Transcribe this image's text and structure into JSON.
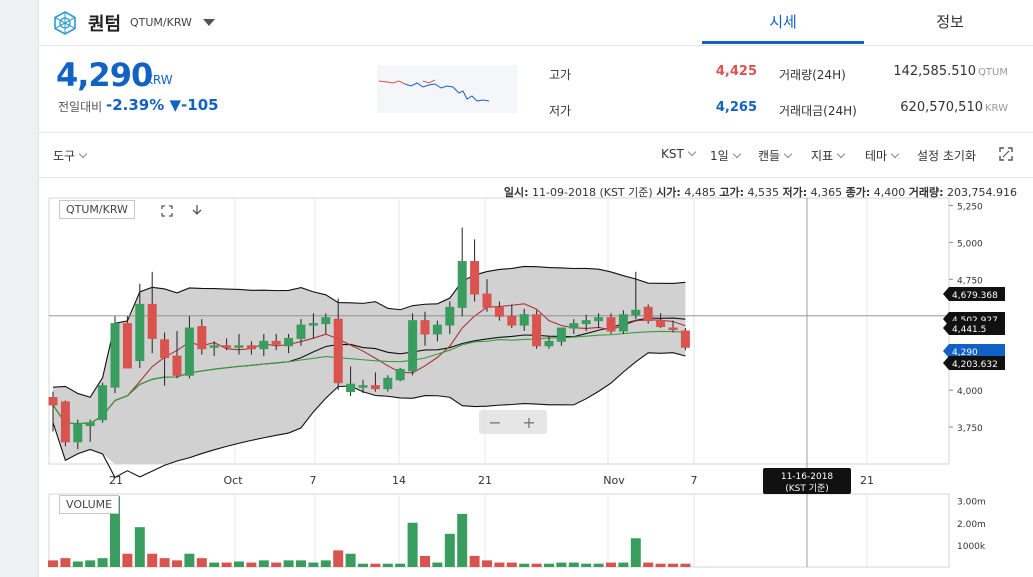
{
  "header": {
    "coin_name": "퀀텀",
    "pair": "QTUM/KRW",
    "tabs": [
      {
        "label": "시세"
      },
      {
        "label": "정보"
      }
    ]
  },
  "summary": {
    "price": "4,290",
    "price_unit": "KRW",
    "change_label": "전일대비",
    "change_pct": "-2.39%",
    "change_abs": "▼-105",
    "high_label": "고가",
    "high_value": "4,425",
    "low_label": "저가",
    "low_value": "4,265",
    "volume_label": "거래량(24H)",
    "volume_value": "142,585.510",
    "volume_unit": "QTUM",
    "amount_label": "거래대금(24H)",
    "amount_value": "620,570,510",
    "amount_unit": "KRW"
  },
  "toolbar": {
    "tools": "도구",
    "timezone": "KST",
    "interval": "1일",
    "candle": "캔들",
    "indicator": "지표",
    "theme": "테마",
    "reset": "설정 초기화"
  },
  "ohlc_bar": {
    "date_label": "일시:",
    "date_value": "11-09-2018 (KST 기준)",
    "open_label": "시가:",
    "open_value": "4,485",
    "high_label": "고가:",
    "high_value": "4,535",
    "low_label": "저가:",
    "low_value": "4,365",
    "close_label": "종가:",
    "close_value": "4,400",
    "volume_label": "거래량:",
    "volume_value": "203,754.916"
  },
  "chart_labels": {
    "main": "QTUM/KRW",
    "volume": "VOLUME",
    "crosshair_date": "11-16-2018",
    "crosshair_sub": "(KST 기준)"
  },
  "colors": {
    "up": "#3a9d60",
    "down": "#d9534f",
    "accent": "#1261c4",
    "band": "#cfcfcf"
  },
  "chart_data": {
    "type": "candlestick",
    "x_tick_labels": [
      "21",
      "Oct",
      "7",
      "14",
      "21",
      "Nov",
      "7",
      "21"
    ],
    "y_tick_labels": [
      "5,250",
      "5,000",
      "4,750",
      "4,500",
      "4,250",
      "4,000",
      "3,750"
    ],
    "ylim": [
      3500,
      5300
    ],
    "price_markers": [
      "4,679.368",
      "4,502.927",
      "4,441.5",
      "4,290",
      "4,203.632"
    ],
    "volume_tick_labels": [
      "3.00m",
      "2.00m",
      "1000k"
    ],
    "volume_ylim": [
      0,
      3300000
    ],
    "candles": [
      [
        3950,
        3990,
        3720,
        3900
      ],
      [
        3920,
        3930,
        3620,
        3650
      ],
      [
        3650,
        3800,
        3600,
        3770
      ],
      [
        3760,
        3800,
        3650,
        3780
      ],
      [
        3800,
        4050,
        3780,
        4030
      ],
      [
        4020,
        4500,
        3980,
        4450
      ],
      [
        4450,
        4500,
        4150,
        4150
      ],
      [
        4200,
        4720,
        4150,
        4580
      ],
      [
        4580,
        4800,
        4250,
        4350
      ],
      [
        4340,
        4390,
        4030,
        4220
      ],
      [
        4230,
        4400,
        4080,
        4100
      ],
      [
        4100,
        4500,
        4080,
        4420
      ],
      [
        4430,
        4480,
        4240,
        4280
      ],
      [
        4300,
        4330,
        4230,
        4300
      ],
      [
        4300,
        4350,
        4270,
        4290
      ],
      [
        4290,
        4380,
        4240,
        4300
      ],
      [
        4300,
        4330,
        4240,
        4280
      ],
      [
        4280,
        4380,
        4230,
        4330
      ],
      [
        4330,
        4380,
        4270,
        4310
      ],
      [
        4300,
        4380,
        4250,
        4350
      ],
      [
        4350,
        4480,
        4300,
        4440
      ],
      [
        4440,
        4520,
        4350,
        4450
      ],
      [
        4450,
        4520,
        4380,
        4490
      ],
      [
        4480,
        4620,
        4000,
        4050
      ],
      [
        3990,
        4160,
        3960,
        4040
      ],
      [
        4020,
        4070,
        3980,
        4030
      ],
      [
        4030,
        4120,
        3990,
        4010
      ],
      [
        4010,
        4100,
        3990,
        4080
      ],
      [
        4070,
        4150,
        4060,
        4140
      ],
      [
        4130,
        4520,
        4100,
        4470
      ],
      [
        4470,
        4530,
        4300,
        4380
      ],
      [
        4380,
        4470,
        4330,
        4440
      ],
      [
        4440,
        4600,
        4380,
        4560
      ],
      [
        4560,
        5100,
        4500,
        4870
      ],
      [
        4870,
        5020,
        4600,
        4650
      ],
      [
        4650,
        4750,
        4530,
        4560
      ],
      [
        4560,
        4600,
        4470,
        4500
      ],
      [
        4500,
        4580,
        4420,
        4440
      ],
      [
        4440,
        4550,
        4400,
        4510
      ],
      [
        4510,
        4540,
        4280,
        4300
      ],
      [
        4300,
        4360,
        4280,
        4330
      ],
      [
        4330,
        4420,
        4300,
        4420
      ],
      [
        4420,
        4480,
        4380,
        4450
      ],
      [
        4450,
        4510,
        4400,
        4470
      ],
      [
        4470,
        4520,
        4420,
        4490
      ],
      [
        4490,
        4520,
        4380,
        4400
      ],
      [
        4400,
        4540,
        4380,
        4510
      ],
      [
        4510,
        4800,
        4480,
        4540
      ],
      [
        4560,
        4580,
        4450,
        4470
      ],
      [
        4470,
        4520,
        4420,
        4430
      ],
      [
        4420,
        4470,
        4390,
        4410
      ],
      [
        4400,
        4420,
        4270,
        4290
      ]
    ],
    "volumes": [
      300000,
      400000,
      250000,
      300000,
      400000,
      3200000,
      600000,
      1800000,
      600000,
      400000,
      300000,
      600000,
      400000,
      200000,
      200000,
      250000,
      200000,
      300000,
      200000,
      300000,
      300000,
      200000,
      300000,
      750000,
      600000,
      150000,
      150000,
      150000,
      150000,
      2000000,
      500000,
      200000,
      1500000,
      2400000,
      500000,
      300000,
      200000,
      200000,
      150000,
      150000,
      150000,
      200000,
      200000,
      150000,
      150000,
      200000,
      200000,
      1300000,
      200000,
      150000,
      150000,
      150000
    ]
  }
}
